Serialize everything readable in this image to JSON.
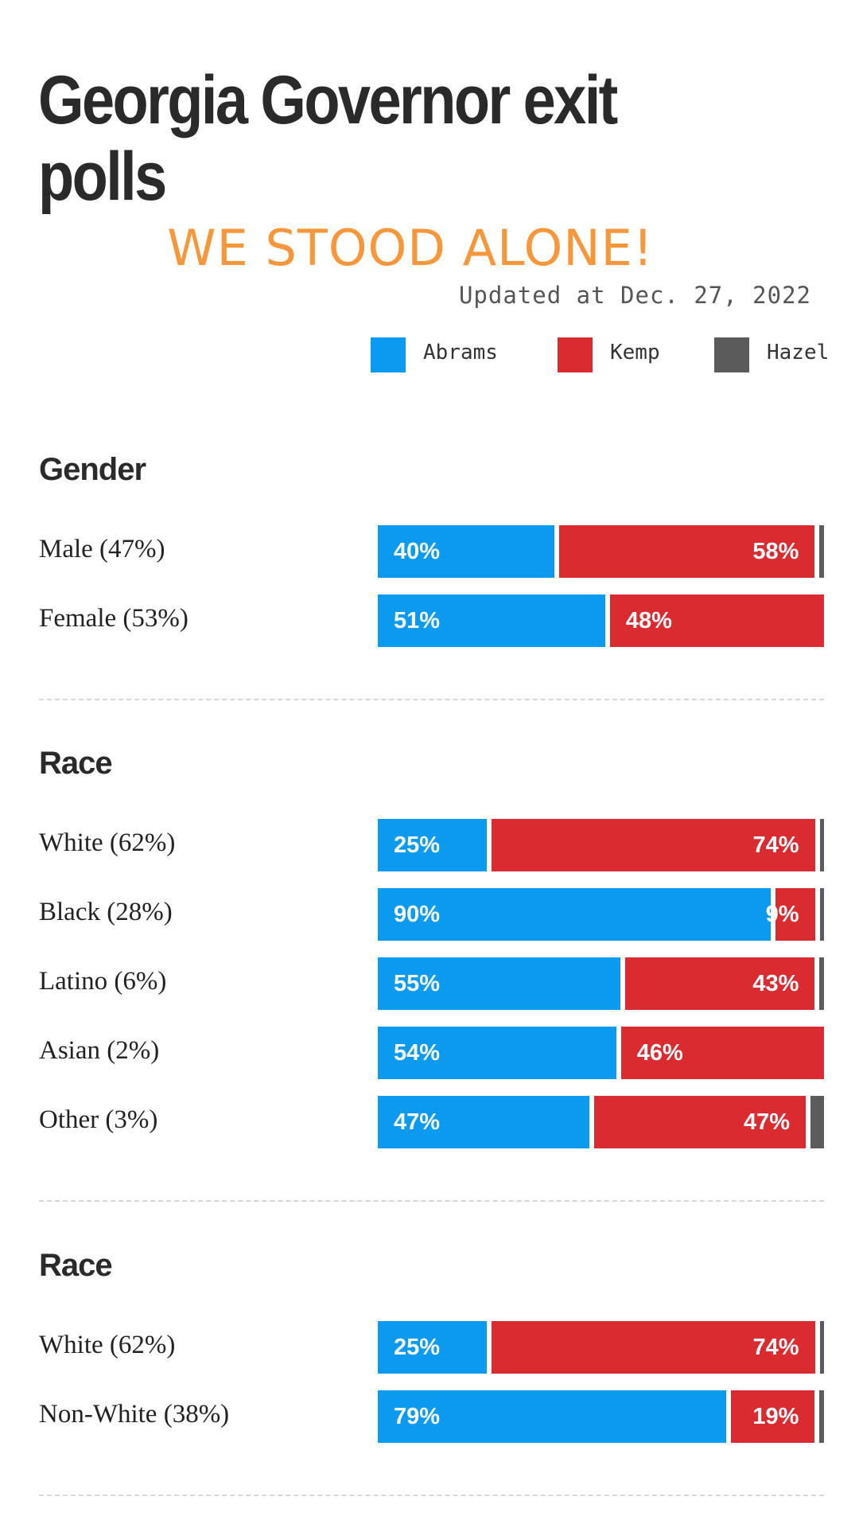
{
  "title": "Georgia Governor exit polls",
  "overlay_text": "WE STOOD ALONE!",
  "updated": "Updated at Dec. 27, 2022",
  "legend": [
    {
      "name": "Abrams",
      "color": "#0a9bf0"
    },
    {
      "name": "Kemp",
      "color": "#d92b30"
    },
    {
      "name": "Hazel",
      "color": "#5b5b5b"
    }
  ],
  "chart_data": [
    {
      "type": "bar",
      "title": "Gender",
      "categories": [
        "Male (47%)",
        "Female (53%)"
      ],
      "series": [
        {
          "name": "Abrams",
          "values": [
            40,
            51
          ]
        },
        {
          "name": "Kemp",
          "values": [
            58,
            48
          ]
        },
        {
          "name": "Hazel",
          "values": [
            1,
            0
          ]
        }
      ],
      "value_labels": [
        [
          "40%",
          "58%",
          ""
        ],
        [
          "51%",
          "48%",
          ""
        ]
      ]
    },
    {
      "type": "bar",
      "title": "Race",
      "categories": [
        "White (62%)",
        "Black (28%)",
        "Latino (6%)",
        "Asian (2%)",
        "Other (3%)"
      ],
      "series": [
        {
          "name": "Abrams",
          "values": [
            25,
            90,
            55,
            54,
            47
          ]
        },
        {
          "name": "Kemp",
          "values": [
            74,
            9,
            43,
            46,
            47
          ]
        },
        {
          "name": "Hazel",
          "values": [
            1,
            1,
            1,
            0,
            3
          ]
        }
      ],
      "value_labels": [
        [
          "25%",
          "74%",
          ""
        ],
        [
          "90%",
          "9%",
          ""
        ],
        [
          "55%",
          "43%",
          ""
        ],
        [
          "54%",
          "46%",
          ""
        ],
        [
          "47%",
          "47%",
          ""
        ]
      ]
    },
    {
      "type": "bar",
      "title": "Race",
      "categories": [
        "White (62%)",
        "Non-White (38%)"
      ],
      "series": [
        {
          "name": "Abrams",
          "values": [
            25,
            79
          ]
        },
        {
          "name": "Kemp",
          "values": [
            74,
            19
          ]
        },
        {
          "name": "Hazel",
          "values": [
            1,
            1
          ]
        }
      ],
      "value_labels": [
        [
          "25%",
          "74%",
          ""
        ],
        [
          "79%",
          "19%",
          ""
        ]
      ]
    }
  ]
}
